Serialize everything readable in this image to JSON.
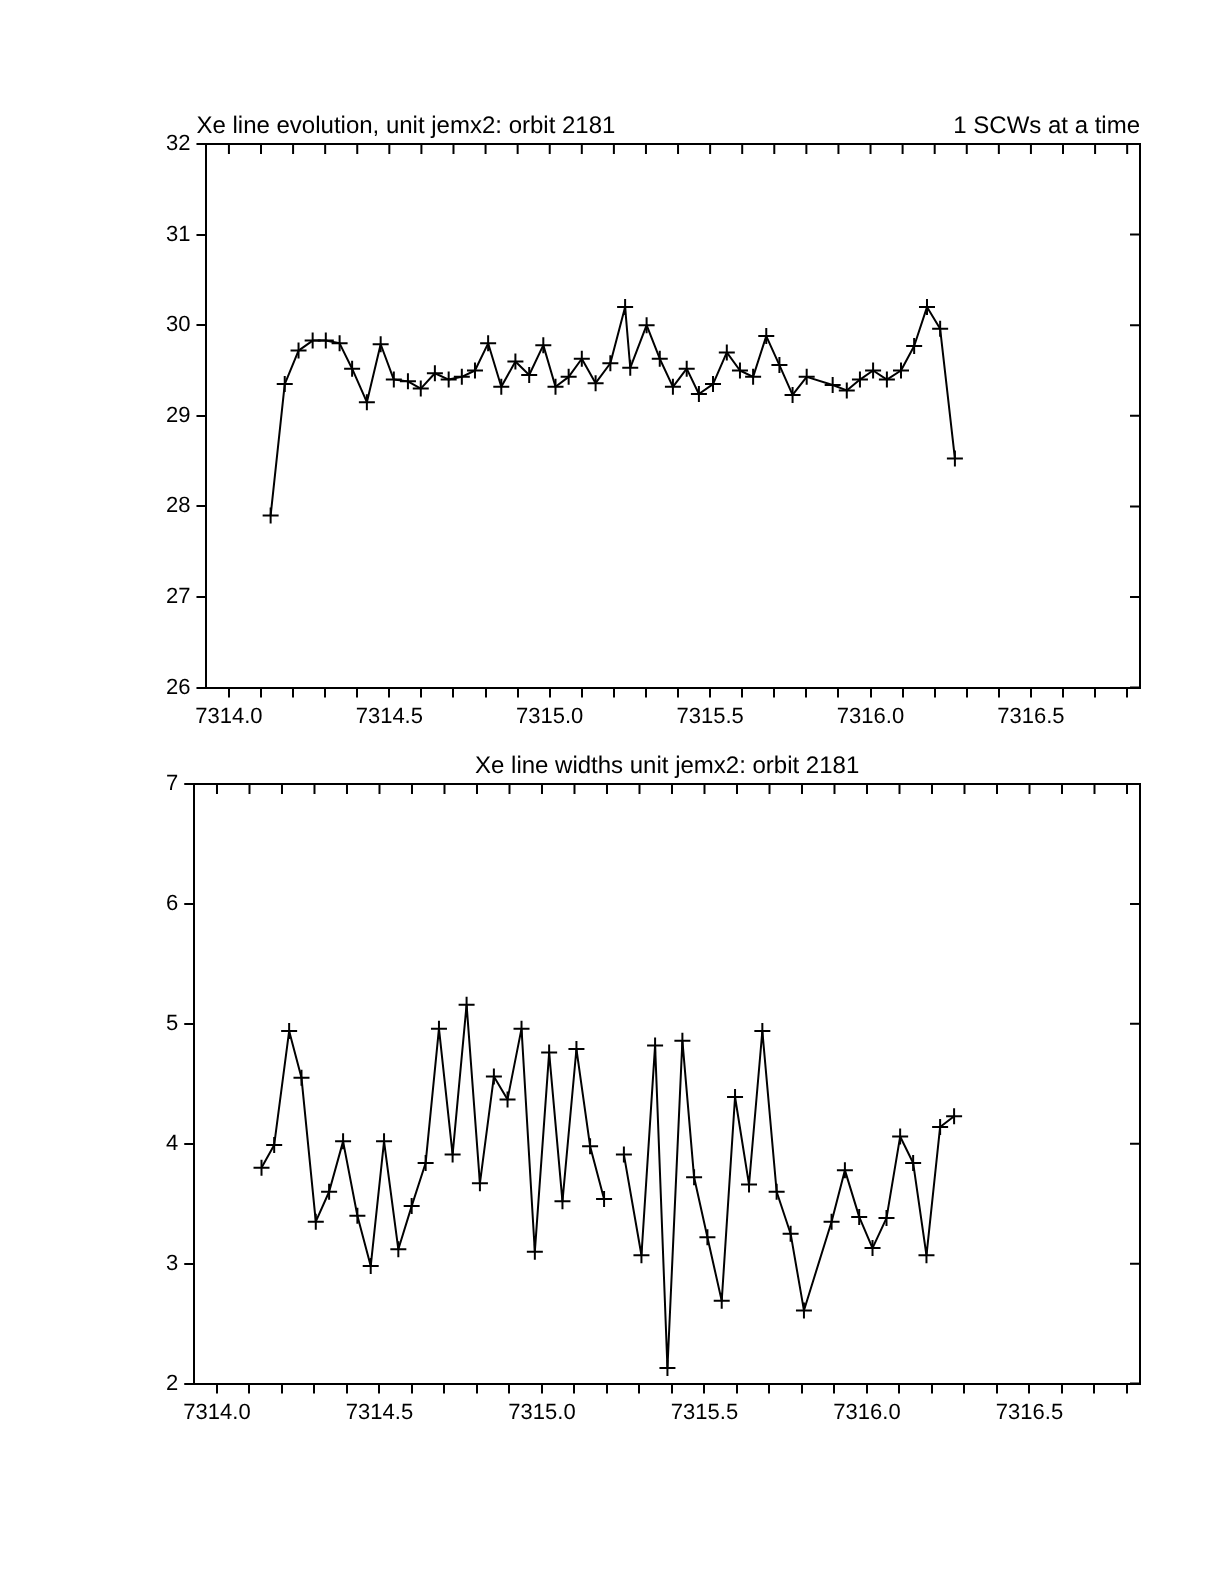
{
  "chart_data": [
    {
      "type": "line",
      "title": "Xe line evolution, unit jemx2: orbit 2181",
      "subtitle": "1 SCWs at a time",
      "x": [
        7314.13,
        7314.174,
        7314.217,
        7314.261,
        7314.302,
        7314.345,
        7314.384,
        7314.43,
        7314.473,
        7314.514,
        7314.558,
        7314.598,
        7314.642,
        7314.685,
        7314.726,
        7314.767,
        7314.808,
        7314.849,
        7314.893,
        7314.936,
        7314.98,
        7315.018,
        7315.059,
        7315.1,
        7315.143,
        7315.189,
        7315.235,
        7315.251,
        7315.302,
        7315.343,
        7315.384,
        7315.427,
        7315.465,
        7315.509,
        7315.552,
        7315.593,
        7315.634,
        7315.675,
        7315.716,
        7315.757,
        7315.801,
        7315.882,
        7315.926,
        7315.967,
        7316.008,
        7316.051,
        7316.095,
        7316.136,
        7316.176,
        7316.217,
        7316.263
      ],
      "series": [
        {
          "color": "#000000",
          "values": [
            27.9,
            29.35,
            29.72,
            29.83,
            29.83,
            29.8,
            29.52,
            29.15,
            29.79,
            29.4,
            29.38,
            29.3,
            29.47,
            29.4,
            29.43,
            29.5,
            29.8,
            29.32,
            29.6,
            29.45,
            29.78,
            29.32,
            29.43,
            29.63,
            29.36,
            29.58,
            30.2,
            29.53,
            30.0,
            29.63,
            29.32,
            29.52,
            29.24,
            29.35,
            29.7,
            29.5,
            29.43,
            29.88,
            29.56,
            29.23,
            29.43,
            29.34,
            29.28,
            29.4,
            29.5,
            29.4,
            29.5,
            29.77,
            30.2,
            29.96,
            28.53
          ]
        }
      ],
      "xlim": [
        7313.93,
        7316.84
      ],
      "xticks": [
        {
          "value": 7314.0,
          "label": "7314.0"
        },
        {
          "value": 7314.1,
          "label": null
        },
        {
          "value": 7314.2,
          "label": null
        },
        {
          "value": 7314.3,
          "label": null
        },
        {
          "value": 7314.4,
          "label": null
        },
        {
          "value": 7314.5,
          "label": "7314.5"
        },
        {
          "value": 7314.6,
          "label": null
        },
        {
          "value": 7314.7,
          "label": null
        },
        {
          "value": 7314.8,
          "label": null
        },
        {
          "value": 7314.9,
          "label": null
        },
        {
          "value": 7315.0,
          "label": "7315.0"
        },
        {
          "value": 7315.1,
          "label": null
        },
        {
          "value": 7315.2,
          "label": null
        },
        {
          "value": 7315.3,
          "label": null
        },
        {
          "value": 7315.4,
          "label": null
        },
        {
          "value": 7315.5,
          "label": "7315.5"
        },
        {
          "value": 7315.6,
          "label": null
        },
        {
          "value": 7315.7,
          "label": null
        },
        {
          "value": 7315.8,
          "label": null
        },
        {
          "value": 7315.9,
          "label": null
        },
        {
          "value": 7316.0,
          "label": "7316.0"
        },
        {
          "value": 7316.1,
          "label": null
        },
        {
          "value": 7316.2,
          "label": null
        },
        {
          "value": 7316.3,
          "label": null
        },
        {
          "value": 7316.4,
          "label": null
        },
        {
          "value": 7316.5,
          "label": "7316.5"
        },
        {
          "value": 7316.6,
          "label": null
        },
        {
          "value": 7316.7,
          "label": null
        },
        {
          "value": 7316.8,
          "label": null
        }
      ],
      "ylim": [
        26,
        32
      ],
      "yticks": [
        26,
        27,
        28,
        29,
        30,
        31,
        32
      ],
      "grid": false,
      "legend": false,
      "marker": "cross",
      "line_style": "solid"
    },
    {
      "type": "line",
      "title": "Xe line widths unit jemx2: orbit 2181",
      "x": [
        7314.137,
        7314.176,
        7314.222,
        7314.26,
        7314.304,
        7314.345,
        7314.388,
        7314.432,
        7314.473,
        7314.514,
        7314.558,
        7314.599,
        7314.642,
        7314.683,
        7314.725,
        7314.768,
        7314.809,
        7314.852,
        7314.894,
        7314.937,
        7314.978,
        7315.022,
        7315.063,
        7315.106,
        7315.148,
        7315.191,
        7315.232,
        7315.252,
        7315.306,
        7315.348,
        7315.386,
        7315.432,
        7315.468,
        7315.509,
        7315.553,
        7315.594,
        7315.637,
        7315.678,
        7315.722,
        7315.765,
        7315.806,
        7315.891,
        7315.932,
        7315.976,
        7316.017,
        7316.06,
        7316.102,
        7316.142,
        7316.183,
        7316.225,
        7316.268
      ],
      "series": [
        {
          "color": "#000000",
          "values": [
            3.8,
            3.99,
            4.94,
            4.55,
            3.35,
            3.6,
            4.02,
            3.4,
            2.98,
            4.02,
            3.12,
            3.48,
            3.84,
            4.96,
            3.91,
            5.16,
            3.67,
            4.56,
            4.37,
            4.96,
            3.1,
            4.76,
            3.52,
            4.79,
            3.98,
            3.54,
            null,
            3.91,
            3.07,
            4.82,
            2.13,
            4.86,
            3.72,
            3.22,
            2.69,
            4.39,
            3.66,
            4.94,
            3.6,
            3.25,
            2.61,
            3.35,
            3.78,
            3.39,
            3.13,
            3.38,
            4.06,
            3.84,
            3.07,
            4.14,
            4.23
          ]
        }
      ],
      "xlim": [
        7313.93,
        7316.84
      ],
      "xticks": [
        {
          "value": 7314.0,
          "label": "7314.0"
        },
        {
          "value": 7314.1,
          "label": null
        },
        {
          "value": 7314.2,
          "label": null
        },
        {
          "value": 7314.3,
          "label": null
        },
        {
          "value": 7314.4,
          "label": null
        },
        {
          "value": 7314.5,
          "label": "7314.5"
        },
        {
          "value": 7314.6,
          "label": null
        },
        {
          "value": 7314.7,
          "label": null
        },
        {
          "value": 7314.8,
          "label": null
        },
        {
          "value": 7314.9,
          "label": null
        },
        {
          "value": 7315.0,
          "label": "7315.0"
        },
        {
          "value": 7315.1,
          "label": null
        },
        {
          "value": 7315.2,
          "label": null
        },
        {
          "value": 7315.3,
          "label": null
        },
        {
          "value": 7315.4,
          "label": null
        },
        {
          "value": 7315.5,
          "label": "7315.5"
        },
        {
          "value": 7315.6,
          "label": null
        },
        {
          "value": 7315.7,
          "label": null
        },
        {
          "value": 7315.8,
          "label": null
        },
        {
          "value": 7315.9,
          "label": null
        },
        {
          "value": 7316.0,
          "label": "7316.0"
        },
        {
          "value": 7316.1,
          "label": null
        },
        {
          "value": 7316.2,
          "label": null
        },
        {
          "value": 7316.3,
          "label": null
        },
        {
          "value": 7316.4,
          "label": null
        },
        {
          "value": 7316.5,
          "label": "7316.5"
        },
        {
          "value": 7316.6,
          "label": null
        },
        {
          "value": 7316.7,
          "label": null
        },
        {
          "value": 7316.8,
          "label": null
        }
      ],
      "ylim": [
        2,
        7
      ],
      "yticks": [
        2,
        3,
        4,
        5,
        6,
        7
      ],
      "grid": false,
      "legend": false,
      "marker": "cross",
      "line_style": "solid"
    }
  ]
}
